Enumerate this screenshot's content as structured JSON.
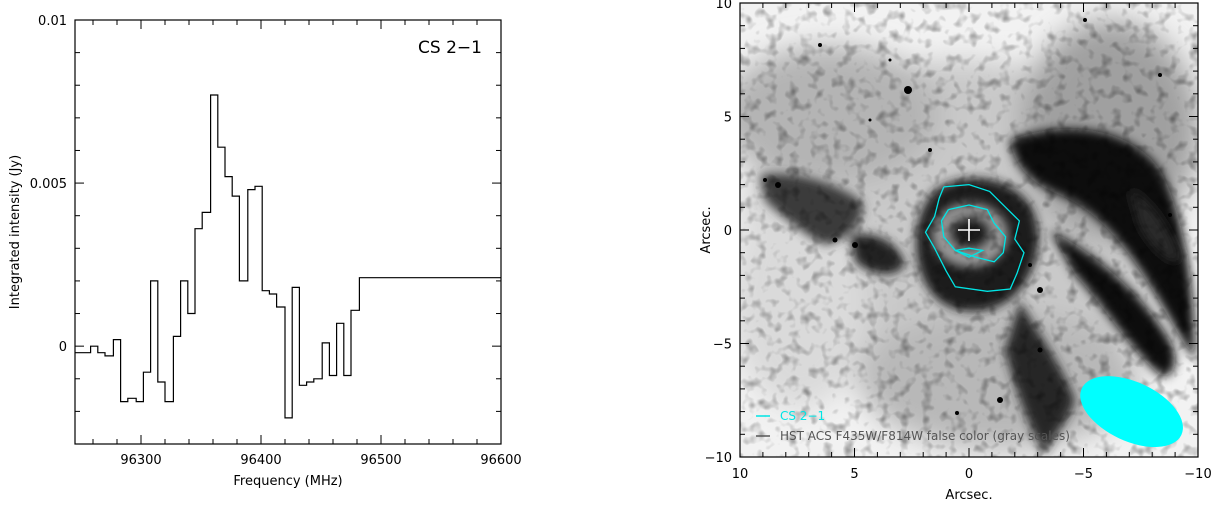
{
  "chart_data": [
    {
      "type": "line",
      "step": true,
      "title": "",
      "annotation": "CS 2−1",
      "xlabel": "Frequency (MHz)",
      "ylabel": "Integrated intensity (Jy)",
      "xlim": [
        96245,
        96600
      ],
      "ylim": [
        -0.003,
        0.01
      ],
      "xticks": [
        96300,
        96400,
        96500,
        96600
      ],
      "yticks": [
        0,
        0.005,
        0.01
      ],
      "ytick_labels": [
        "0",
        "0.005",
        "0.01"
      ],
      "grid": false,
      "series": [
        {
          "color": "#000000",
          "x": [
            96245,
            96253,
            96258,
            96264,
            96270,
            96277,
            96283,
            96289,
            96296,
            96302,
            96308,
            96314,
            96320,
            96327,
            96333,
            96339,
            96345,
            96351,
            96358,
            96364,
            96370,
            96376,
            96382,
            96389,
            96395,
            96401,
            96407,
            96413,
            96420,
            96426,
            96432,
            96438,
            96444,
            96451,
            96457,
            96463,
            96469,
            96475,
            96482,
            96488,
            96494,
            96500,
            96506,
            96513,
            96519,
            96525,
            96531,
            96537,
            96544,
            96550,
            96556,
            96562,
            96568,
            96575,
            96581,
            96587,
            96593,
            96600
          ],
          "y": [
            -0.0002,
            -0.0002,
            0.0,
            -0.0002,
            -0.0003,
            0.0002,
            -0.0017,
            -0.0016,
            -0.0017,
            -0.0008,
            0.002,
            -0.0011,
            -0.0017,
            0.0003,
            0.002,
            0.001,
            0.0036,
            0.0041,
            0.0077,
            0.0061,
            0.0052,
            0.0046,
            0.002,
            0.0048,
            0.0049,
            0.0017,
            0.0016,
            0.0012,
            -0.0022,
            0.0018,
            -0.0012,
            -0.0011,
            -0.001,
            0.0001,
            -0.0009,
            0.0007,
            -0.0009,
            0.0011,
            0.0021,
            0.0021,
            0.0021,
            0.0021,
            0.0021,
            0.0021,
            0.0021,
            0.0021,
            0.0021,
            0.0021,
            0.0021,
            0.0021,
            0.0021,
            0.0021,
            0.0021,
            0.0021,
            0.0021,
            0.0021,
            0.0021,
            0.0021
          ]
        }
      ]
    },
    {
      "type": "heatmap",
      "title": "",
      "xlabel": "Arcsec.",
      "ylabel": "Arcsec.",
      "xlim": [
        10,
        -10
      ],
      "ylim": [
        -10,
        10
      ],
      "xticks": [
        10,
        5,
        0,
        -5,
        -10
      ],
      "xtick_labels": [
        "10",
        "5",
        "0",
        "−5",
        "−10"
      ],
      "yticks": [
        -10,
        -5,
        0,
        5,
        10
      ],
      "ytick_labels": [
        "−10",
        "−5",
        "0",
        "5",
        "10"
      ],
      "grid": false,
      "legend_position": "bottom-left",
      "legend": [
        {
          "label": "CS 2−1",
          "color": "#00e5e5"
        },
        {
          "label": "HST ACS F435W/F814W false color (gray scales)",
          "color": "#555555"
        }
      ],
      "center_marker": {
        "x": 0,
        "y": 0,
        "color": "#ffffff"
      },
      "beam": {
        "x": -7.1,
        "y": -8.0,
        "major": 4.8,
        "minor": 2.6,
        "pa_deg": -25,
        "color": "#00ffff"
      },
      "contours": [
        {
          "color": "#00e5e5",
          "points": [
            [
              1.1,
              1.9
            ],
            [
              0,
              2.0
            ],
            [
              -0.9,
              1.7
            ],
            [
              -1.6,
              1.0
            ],
            [
              -2.2,
              0.4
            ],
            [
              -2.0,
              -0.4
            ],
            [
              -2.4,
              -1.0
            ],
            [
              -2.1,
              -1.9
            ],
            [
              -1.8,
              -2.6
            ],
            [
              -0.8,
              -2.7
            ],
            [
              0.6,
              -2.5
            ],
            [
              1.0,
              -1.8
            ],
            [
              1.5,
              -0.8
            ],
            [
              1.9,
              -0.1
            ],
            [
              1.5,
              0.6
            ],
            [
              1.3,
              1.4
            ],
            [
              1.1,
              1.9
            ]
          ]
        },
        {
          "color": "#00e5e5",
          "points": [
            [
              0.9,
              0.9
            ],
            [
              0,
              1.1
            ],
            [
              -0.8,
              0.9
            ],
            [
              -1.1,
              0.3
            ],
            [
              -1.6,
              -0.3
            ],
            [
              -1.5,
              -1.0
            ],
            [
              -1.1,
              -1.4
            ],
            [
              -0.3,
              -1.2
            ],
            [
              0.6,
              -0.9
            ],
            [
              1.1,
              -0.3
            ],
            [
              1.2,
              0.4
            ],
            [
              0.9,
              0.9
            ]
          ]
        },
        {
          "color": "#00e5e5",
          "points": [
            [
              0.6,
              -0.9
            ],
            [
              0,
              -0.8
            ],
            [
              -0.6,
              -0.9
            ],
            [
              0,
              -1.2
            ],
            [
              0.6,
              -0.9
            ]
          ]
        }
      ]
    }
  ]
}
